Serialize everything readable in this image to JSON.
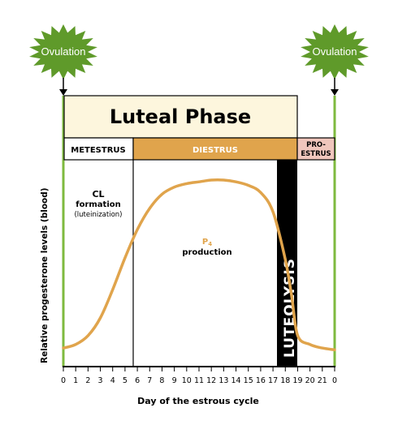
{
  "ovulation_left": "Ovulation",
  "ovulation_right": "Ovulation",
  "luteal_phase": "Luteal Phase",
  "phases": {
    "metestrus": "METESTRUS",
    "diestrus": "DIESTRUS",
    "proestrus_line1": "PRO-",
    "proestrus_line2": "ESTRUS"
  },
  "cl": {
    "line1": "CL",
    "line2": "formation",
    "line3": "(luteinization)"
  },
  "p4": {
    "symbol": "P",
    "subscript": "4",
    "label": "production"
  },
  "luteolysis": "LUTEOLYSIS",
  "y_label": "Relative progesterone levels (blood)",
  "x_label": "Day of the estrous cycle",
  "colors": {
    "green": "#7fba3f",
    "starburst": "#5f9a2a",
    "curve": "#e0a44c",
    "diestrus": "#e0a44c",
    "proestrus": "#f0c6bc",
    "luteal_bg": "#fdf6dd"
  },
  "chart_data": {
    "type": "line",
    "x_ticks": [
      "0",
      "1",
      "2",
      "3",
      "4",
      "5",
      "6",
      "7",
      "8",
      "9",
      "10",
      "11",
      "12",
      "13",
      "14",
      "15",
      "16",
      "17",
      "18",
      "19",
      "20",
      "21",
      "0"
    ],
    "series": [
      {
        "x": [
          0,
          1,
          2,
          3,
          4,
          5,
          6,
          7,
          8,
          9,
          10,
          11,
          12,
          13,
          14,
          15,
          16,
          17,
          18,
          18.5,
          19,
          20,
          21,
          22
        ],
        "y": [
          0.05,
          0.07,
          0.12,
          0.22,
          0.38,
          0.56,
          0.72,
          0.84,
          0.92,
          0.96,
          0.98,
          0.99,
          1.0,
          1.0,
          0.99,
          0.97,
          0.93,
          0.82,
          0.55,
          0.35,
          0.12,
          0.07,
          0.05,
          0.04
        ]
      }
    ]
  }
}
